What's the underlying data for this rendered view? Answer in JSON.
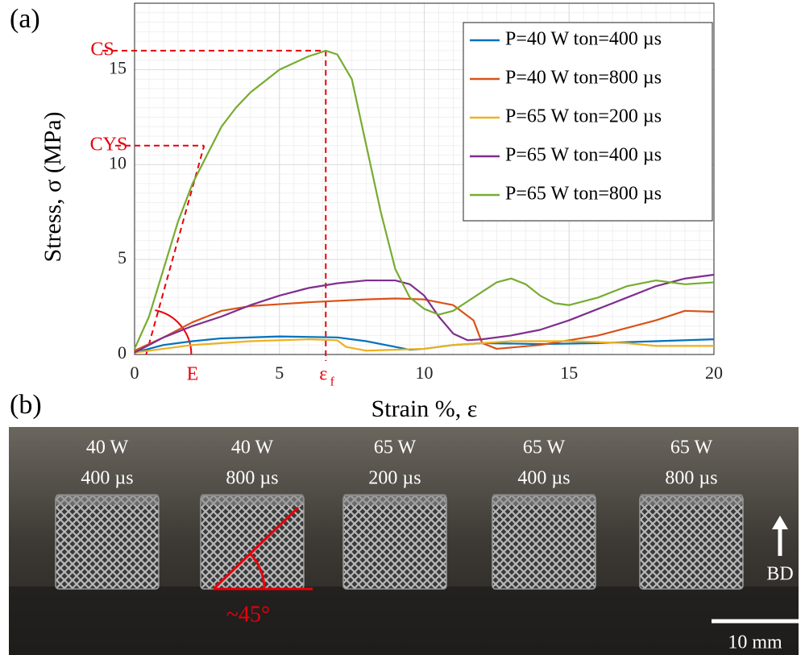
{
  "chart_data": {
    "type": "line",
    "panel_label": "(a)",
    "x_label": "Strain %, ε",
    "y_label": "Stress, σ (MPa)",
    "xlim": [
      0,
      20
    ],
    "ylim": [
      0,
      18.5
    ],
    "xticks": [
      0,
      5,
      10,
      15,
      20
    ],
    "yticks": [
      0,
      5,
      10,
      15
    ],
    "grid": true,
    "legend": "upper right",
    "annotations": {
      "cs": {
        "label": "CS",
        "value": 16,
        "x": 6.6
      },
      "cys": {
        "label": "CYS",
        "value": 11,
        "x": 2.4
      },
      "strain_at_failure": {
        "label": "ε",
        "subscript": "f",
        "value": 6.6
      },
      "modulus": {
        "label": "E"
      }
    },
    "series": [
      {
        "name": "P=40 W ton=400 µs",
        "color": "#0072bd",
        "x": [
          0,
          1,
          2,
          3,
          5,
          7,
          8,
          9,
          9.5,
          10,
          11,
          12,
          14,
          16,
          18,
          20
        ],
        "values": [
          0.1,
          0.5,
          0.7,
          0.85,
          0.95,
          0.9,
          0.7,
          0.4,
          0.25,
          0.3,
          0.5,
          0.6,
          0.55,
          0.6,
          0.7,
          0.8
        ]
      },
      {
        "name": "P=40 W ton=800 µs",
        "color": "#d95319",
        "x": [
          0,
          1,
          2,
          3,
          4,
          5,
          6,
          8,
          9,
          10,
          11,
          11.7,
          12,
          12.5,
          14,
          16,
          18,
          19,
          20
        ],
        "values": [
          0.2,
          0.9,
          1.7,
          2.3,
          2.55,
          2.65,
          2.75,
          2.9,
          2.95,
          2.9,
          2.6,
          1.8,
          0.6,
          0.3,
          0.5,
          1.0,
          1.8,
          2.3,
          2.25
        ]
      },
      {
        "name": "P=65 W ton=200 µs",
        "color": "#edb120",
        "x": [
          0,
          1,
          2,
          4,
          6,
          7,
          7.3,
          8,
          10,
          11,
          13,
          15,
          17,
          18,
          20
        ],
        "values": [
          0.1,
          0.3,
          0.5,
          0.7,
          0.8,
          0.75,
          0.4,
          0.2,
          0.3,
          0.5,
          0.7,
          0.7,
          0.6,
          0.45,
          0.45
        ]
      },
      {
        "name": "P=65 W ton=400 µs",
        "color": "#7e2f8e",
        "x": [
          0,
          1,
          2,
          3,
          4,
          5,
          6,
          7,
          8,
          9,
          9.5,
          10,
          10.5,
          11,
          11.5,
          12,
          13,
          14,
          15,
          16,
          17,
          18,
          19,
          20
        ],
        "values": [
          0.1,
          0.9,
          1.5,
          2,
          2.6,
          3.1,
          3.5,
          3.75,
          3.9,
          3.9,
          3.7,
          3.1,
          2,
          1.1,
          0.75,
          0.8,
          1.0,
          1.3,
          1.8,
          2.4,
          3,
          3.6,
          4.0,
          4.2
        ]
      },
      {
        "name": "P=65 W ton=800 µs",
        "color": "#77ac30",
        "x": [
          0,
          0.5,
          1,
          1.5,
          2,
          2.5,
          3,
          3.5,
          4,
          5,
          6,
          6.6,
          7,
          7.5,
          8,
          8.5,
          9,
          9.5,
          10,
          10.5,
          11,
          11.5,
          12,
          12.5,
          13,
          13.5,
          14,
          14.5,
          15,
          16,
          17,
          18,
          19,
          20
        ],
        "values": [
          0.3,
          2,
          4.5,
          7,
          9,
          10.5,
          12,
          13,
          13.8,
          15,
          15.7,
          16,
          15.8,
          14.5,
          11,
          7.5,
          4.5,
          3,
          2.4,
          2.1,
          2.3,
          2.8,
          3.3,
          3.8,
          4,
          3.7,
          3.1,
          2.7,
          2.6,
          3,
          3.6,
          3.9,
          3.7,
          3.8
        ]
      }
    ]
  },
  "photo": {
    "panel_label": "(b)",
    "samples": [
      {
        "power": "40 W",
        "pulse": "400 µs"
      },
      {
        "power": "40 W",
        "pulse": "800 µs"
      },
      {
        "power": "65 W",
        "pulse": "200 µs"
      },
      {
        "power": "65 W",
        "pulse": "400 µs"
      },
      {
        "power": "65 W",
        "pulse": "800 µs"
      }
    ],
    "angle_label": "~45°",
    "direction_label": "BD",
    "scale_label": "10 mm"
  }
}
